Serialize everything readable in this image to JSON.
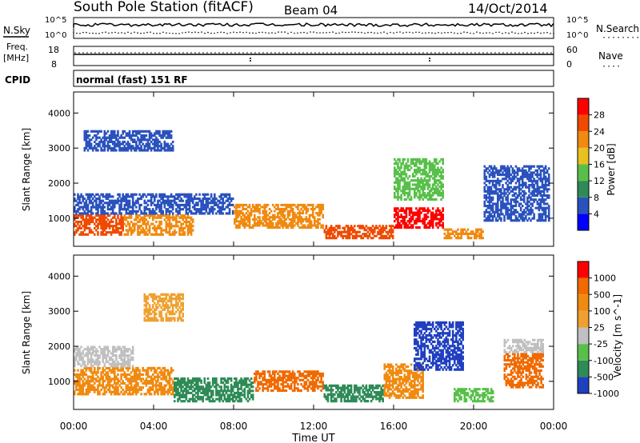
{
  "header": {
    "station": "South Pole Station (fitACF)",
    "beam": "Beam 04",
    "date": "14/Oct/2014"
  },
  "sky_panel": {
    "left_label": "N.Sky",
    "left_ticks": [
      "10^5",
      "10^0"
    ],
    "right_ticks": [
      "10^5",
      "10^0"
    ],
    "right_label": "N.Search"
  },
  "freq_panel": {
    "left_label_top": "Freq.",
    "left_label_bottom": "[MHz]",
    "left_ticks": [
      "18",
      "8"
    ],
    "right_ticks": [
      "60",
      "0"
    ],
    "right_label": "Nave"
  },
  "cpid_panel": {
    "label": "CPID",
    "text": "normal (fast) 151 RF"
  },
  "chart_data": [
    {
      "type": "heatmap",
      "name": "power",
      "ylabel": "Slant Range [km]",
      "yticks": [
        "1000",
        "2000",
        "3000",
        "4000"
      ],
      "ylim": [
        200,
        4600
      ],
      "x": [
        "00:00",
        "04:00",
        "08:00",
        "12:00",
        "16:00",
        "20:00",
        "00:00"
      ],
      "colorbar": {
        "label": "Power [dB]",
        "ticks": [
          "4",
          "8",
          "12",
          "16",
          "20",
          "24",
          "28"
        ],
        "colors": [
          "#0000ff",
          "#2a52be",
          "#2e8b57",
          "#58c04a",
          "#e8c020",
          "#f08a10",
          "#f04a00",
          "#ff0000"
        ]
      },
      "bands": [
        {
          "t0": 0.0,
          "t1": 2.5,
          "r0": 500,
          "r1": 1100,
          "color": "#f04a00"
        },
        {
          "t0": 2.5,
          "t1": 6.0,
          "r0": 500,
          "r1": 1100,
          "color": "#f08a10"
        },
        {
          "t0": 0.0,
          "t1": 8.0,
          "r0": 1100,
          "r1": 1700,
          "color": "#2a52be"
        },
        {
          "t0": 0.5,
          "t1": 5.0,
          "r0": 2900,
          "r1": 3500,
          "color": "#2a52be"
        },
        {
          "t0": 8.0,
          "t1": 12.5,
          "r0": 700,
          "r1": 1400,
          "color": "#f08a10"
        },
        {
          "t0": 12.5,
          "t1": 16.0,
          "r0": 400,
          "r1": 800,
          "color": "#f04a00"
        },
        {
          "t0": 16.0,
          "t1": 18.5,
          "r0": 700,
          "r1": 1300,
          "color": "#ff0000"
        },
        {
          "t0": 16.0,
          "t1": 18.5,
          "r0": 1500,
          "r1": 2700,
          "color": "#58c04a"
        },
        {
          "t0": 18.5,
          "t1": 20.5,
          "r0": 400,
          "r1": 700,
          "color": "#f08a10"
        },
        {
          "t0": 20.5,
          "t1": 23.8,
          "r0": 900,
          "r1": 2500,
          "color": "#2a52be"
        }
      ]
    },
    {
      "type": "heatmap",
      "name": "velocity",
      "ylabel": "Slant Range [km]",
      "yticks": [
        "1000",
        "2000",
        "3000",
        "4000"
      ],
      "ylim": [
        200,
        4600
      ],
      "x": [
        "00:00",
        "04:00",
        "08:00",
        "12:00",
        "16:00",
        "20:00",
        "00:00"
      ],
      "xlabel": "Time UT",
      "colorbar": {
        "label": "Velocity [m s^-1]",
        "ticks": [
          "1000",
          "500",
          "100",
          "25",
          "-25",
          "-100",
          "-500",
          "-1000"
        ],
        "colors": [
          "#2040c0",
          "#2e8b57",
          "#58c04a",
          "#c0c0c0",
          "#f0a030",
          "#f08a10",
          "#f06a00",
          "#ff0000"
        ]
      },
      "bands": [
        {
          "t0": 0.0,
          "t1": 5.0,
          "r0": 600,
          "r1": 1400,
          "color": "#f08a10"
        },
        {
          "t0": 0.0,
          "t1": 3.0,
          "r0": 1400,
          "r1": 2000,
          "color": "#c0c0c0"
        },
        {
          "t0": 5.0,
          "t1": 9.0,
          "r0": 400,
          "r1": 1100,
          "color": "#2e8b57"
        },
        {
          "t0": 3.5,
          "t1": 5.5,
          "r0": 2700,
          "r1": 3500,
          "color": "#f0a030"
        },
        {
          "t0": 9.0,
          "t1": 12.5,
          "r0": 700,
          "r1": 1300,
          "color": "#f06a00"
        },
        {
          "t0": 12.5,
          "t1": 15.5,
          "r0": 400,
          "r1": 900,
          "color": "#2e8b57"
        },
        {
          "t0": 15.5,
          "t1": 17.5,
          "r0": 500,
          "r1": 1500,
          "color": "#f08a10"
        },
        {
          "t0": 17.0,
          "t1": 19.5,
          "r0": 1300,
          "r1": 2700,
          "color": "#2040c0"
        },
        {
          "t0": 19.0,
          "t1": 21.0,
          "r0": 400,
          "r1": 800,
          "color": "#58c04a"
        },
        {
          "t0": 21.5,
          "t1": 23.5,
          "r0": 800,
          "r1": 1800,
          "color": "#f06a00"
        },
        {
          "t0": 21.5,
          "t1": 23.5,
          "r0": 1800,
          "r1": 2200,
          "color": "#c0c0c0"
        }
      ]
    }
  ]
}
